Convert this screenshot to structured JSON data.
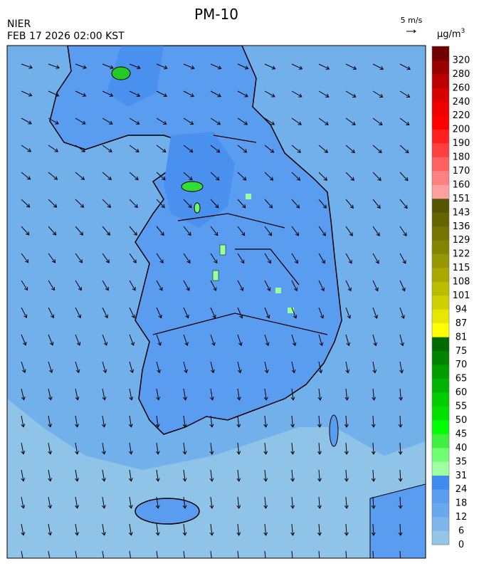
{
  "header": {
    "title": "PM-10",
    "agency": "NIER",
    "timestamp": "FEB 17 2026 02:00 KST",
    "wind_scale": "5 m/s"
  },
  "legend": {
    "unit": "μg/m",
    "unit_superscript": "3",
    "levels": [
      0,
      6,
      12,
      18,
      24,
      31,
      35,
      40,
      45,
      50,
      55,
      60,
      65,
      70,
      75,
      81,
      87,
      94,
      101,
      108,
      115,
      122,
      129,
      136,
      143,
      151,
      160,
      170,
      180,
      190,
      200,
      220,
      240,
      260,
      280,
      320
    ],
    "colors": [
      "#93c6e8",
      "#7fb6ec",
      "#6aa8ee",
      "#5a9cf0",
      "#3d8cee",
      "#a0ffa0",
      "#70ff70",
      "#40f040",
      "#00ff00",
      "#00e000",
      "#00cc00",
      "#00b400",
      "#009c00",
      "#008400",
      "#006a00",
      "#ffff00",
      "#e6e600",
      "#d0d000",
      "#bcbc00",
      "#a8a800",
      "#969600",
      "#848400",
      "#747400",
      "#646400",
      "#555500",
      "#ffa0a0",
      "#ff8080",
      "#ff6060",
      "#ff4040",
      "#ff2020",
      "#ff0000",
      "#ee0000",
      "#d80000",
      "#bb0000",
      "#990000",
      "#700000"
    ]
  }
}
